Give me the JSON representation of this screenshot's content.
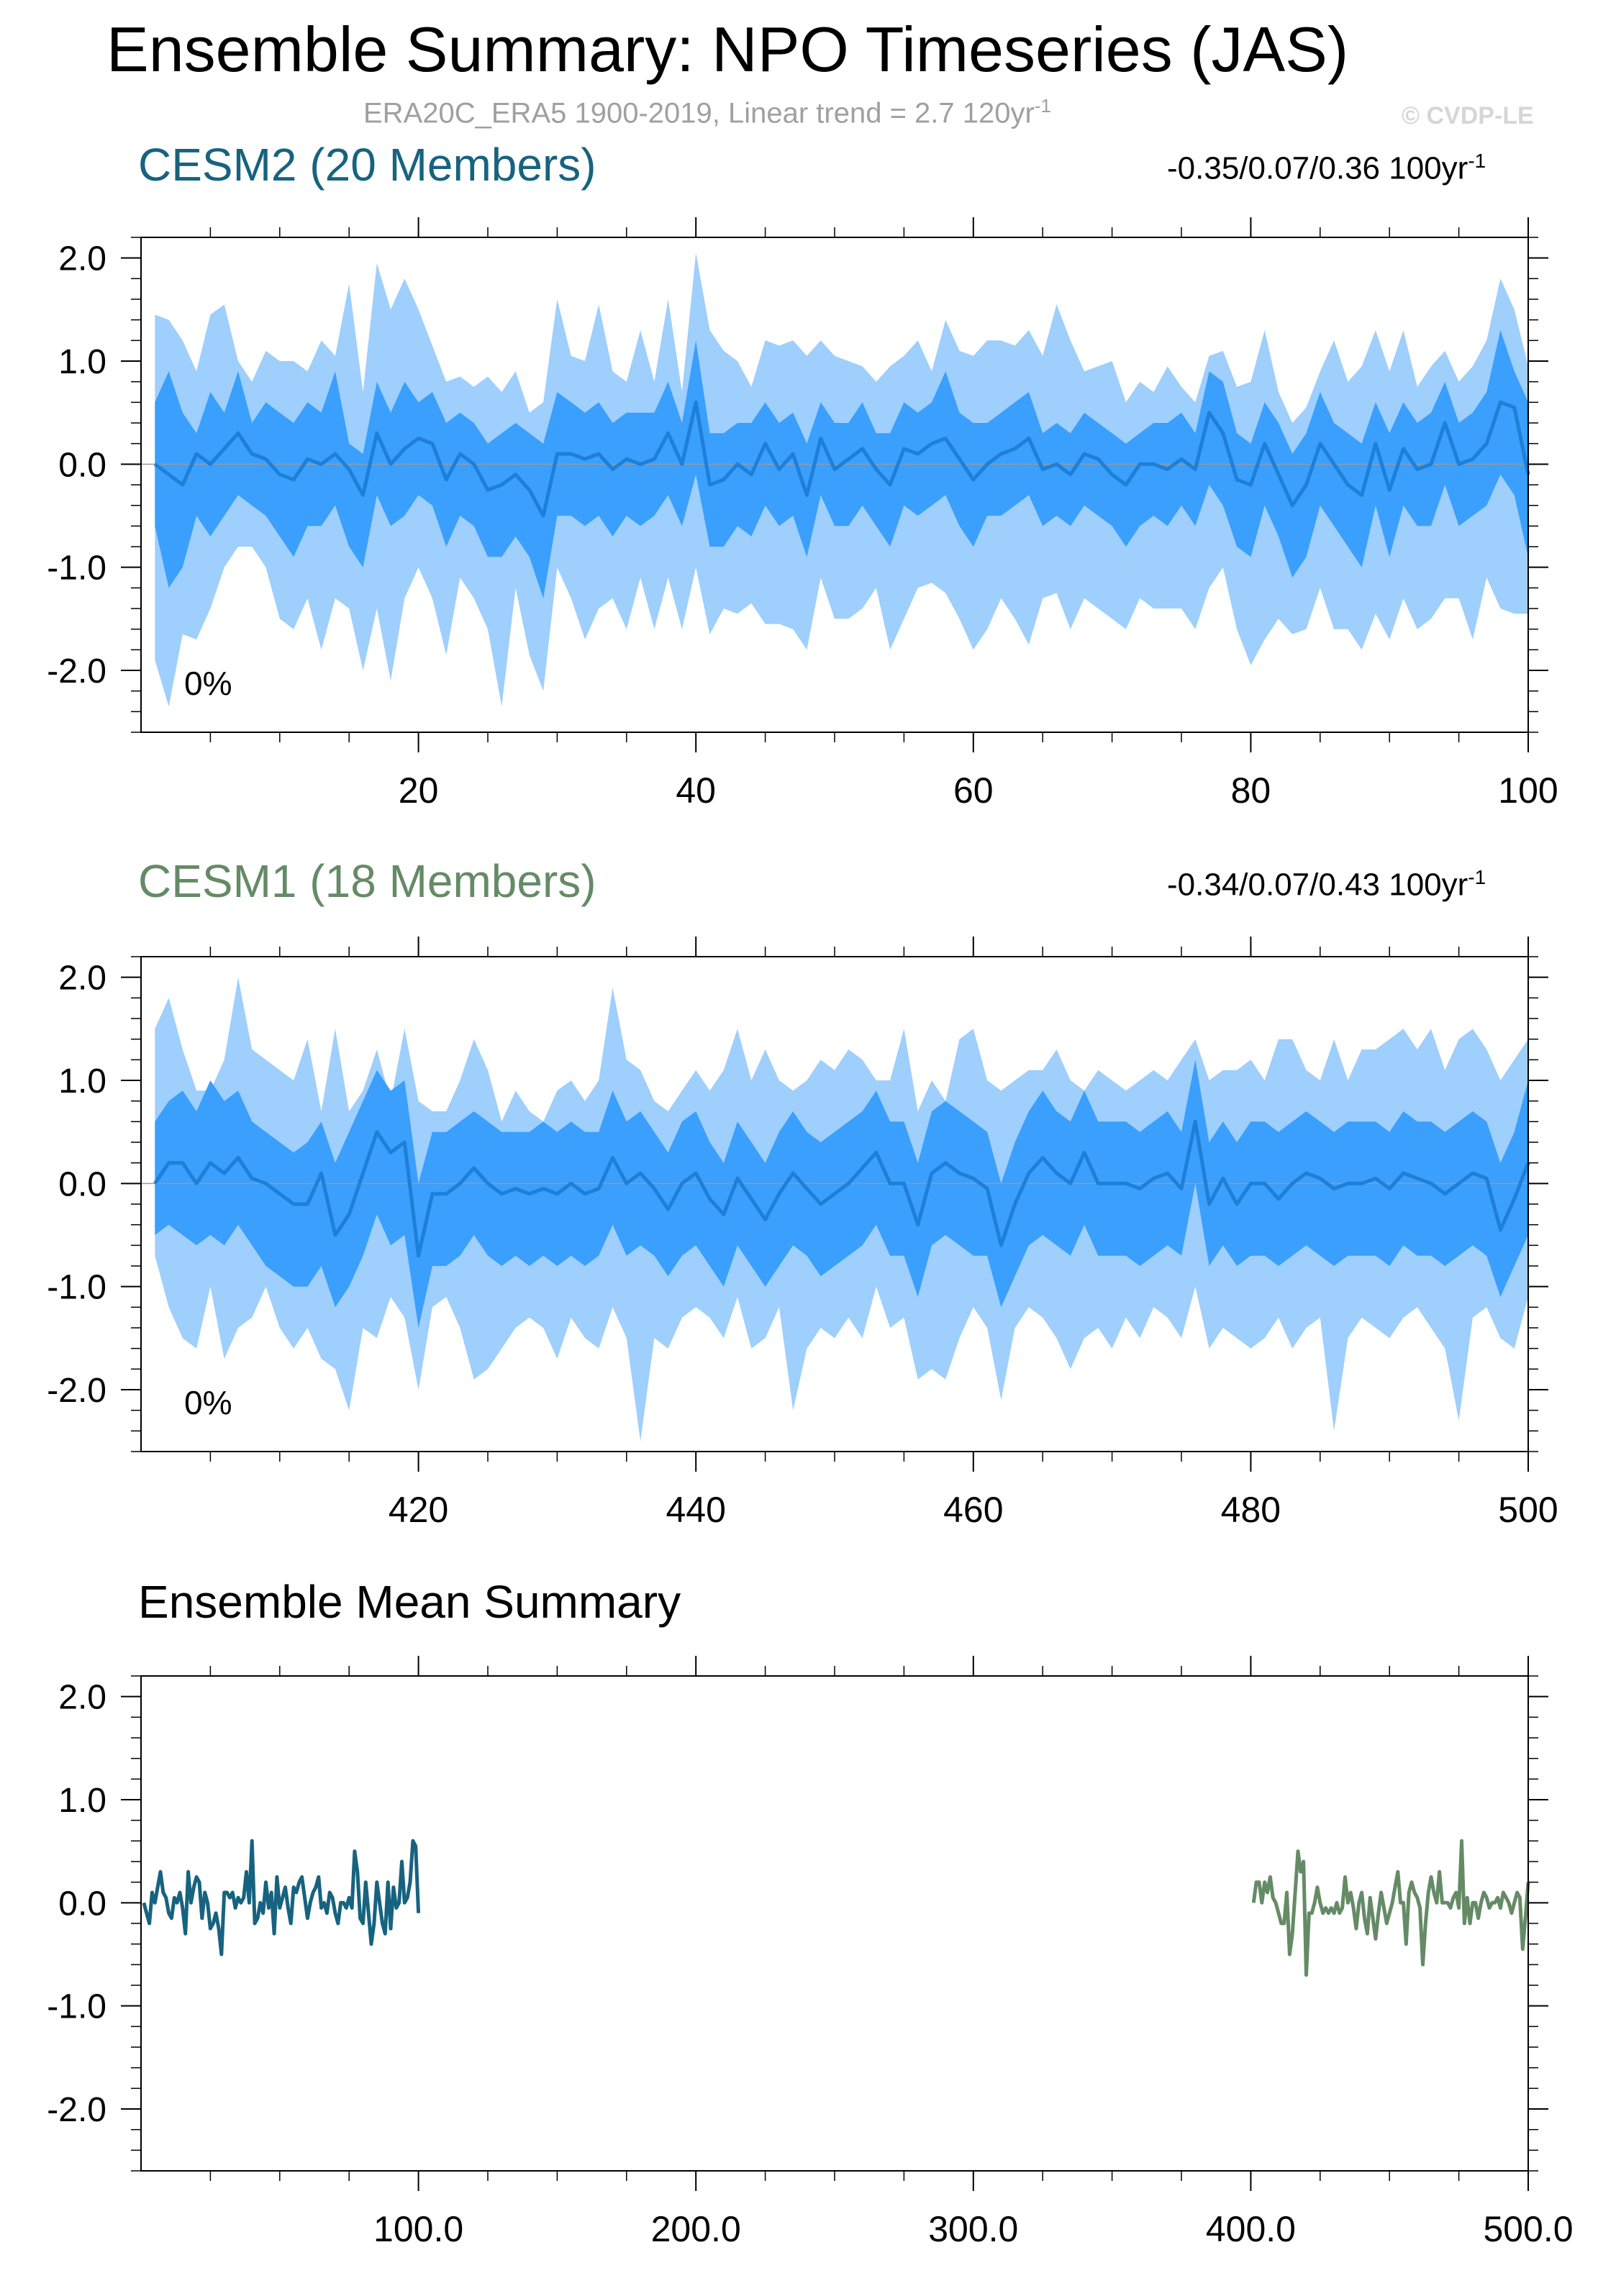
{
  "header": {
    "title": "Ensemble Summary: NPO Timeseries (JAS)",
    "subtitle_main": "ERA20C_ERA5 1900-2019, Linear trend = 2.7 120yr",
    "subtitle_exp": "-1",
    "credit": "© CVDP-LE"
  },
  "colors": {
    "band_outer": "#9ecffd",
    "band_inner": "#3a9ffd",
    "ensemble_mean_line": "#1d7fd8",
    "cesm2": "#17637f",
    "cesm1": "#658b66",
    "zero_line": "#9a9a9a"
  },
  "panels": [
    {
      "title": "CESM2 (20 Members)",
      "trend_text": "-0.35/0.07/0.36 100yr",
      "trend_exp": "-1",
      "percent_label": "0%"
    },
    {
      "title": "CESM1 (18 Members)",
      "trend_text": "-0.34/0.07/0.43 100yr",
      "trend_exp": "-1",
      "percent_label": "0%"
    },
    {
      "title": "Ensemble Mean Summary"
    }
  ],
  "chart_data": [
    {
      "type": "area",
      "title": "CESM2 (20 Members)",
      "xlim": [
        0,
        100
      ],
      "ylim": [
        -2.6,
        2.2
      ],
      "xticks": [
        20,
        40,
        60,
        80,
        100
      ],
      "xtick_labels": [
        "20",
        "40",
        "60",
        "80",
        "100"
      ],
      "yticks": [
        2.0,
        1.0,
        0.0,
        -1.0,
        -2.0
      ],
      "ytick_labels": [
        "2.0",
        "1.0",
        "0.0",
        "-1.0",
        "-2.0"
      ],
      "x": [
        1,
        2,
        3,
        4,
        5,
        6,
        7,
        8,
        9,
        10,
        11,
        12,
        13,
        14,
        15,
        16,
        17,
        18,
        19,
        20,
        21,
        22,
        23,
        24,
        25,
        26,
        27,
        28,
        29,
        30,
        31,
        32,
        33,
        34,
        35,
        36,
        37,
        38,
        39,
        40,
        41,
        42,
        43,
        44,
        45,
        46,
        47,
        48,
        49,
        50,
        51,
        52,
        53,
        54,
        55,
        56,
        57,
        58,
        59,
        60,
        61,
        62,
        63,
        64,
        65,
        66,
        67,
        68,
        69,
        70,
        71,
        72,
        73,
        74,
        75,
        76,
        77,
        78,
        79,
        80,
        81,
        82,
        83,
        84,
        85,
        86,
        87,
        88,
        89,
        90,
        91,
        92,
        93,
        94,
        95,
        96,
        97,
        98,
        99,
        100
      ],
      "mean": [
        0.0,
        -0.1,
        -0.2,
        0.1,
        0.0,
        0.15,
        0.3,
        0.1,
        0.05,
        -0.1,
        -0.15,
        0.05,
        0.0,
        0.1,
        -0.05,
        -0.3,
        0.3,
        0.0,
        0.15,
        0.25,
        0.2,
        -0.15,
        0.1,
        0.0,
        -0.25,
        -0.2,
        -0.1,
        -0.25,
        -0.5,
        0.1,
        0.1,
        0.05,
        0.1,
        -0.05,
        0.05,
        0.0,
        0.05,
        0.3,
        0.0,
        0.6,
        -0.2,
        -0.15,
        0.0,
        -0.1,
        0.2,
        -0.05,
        0.1,
        -0.3,
        0.25,
        -0.05,
        0.05,
        0.15,
        -0.05,
        -0.2,
        0.15,
        0.1,
        0.2,
        0.25,
        0.05,
        -0.15,
        0.0,
        0.1,
        0.15,
        0.25,
        -0.05,
        0.0,
        -0.1,
        0.1,
        0.05,
        -0.1,
        -0.2,
        0.0,
        0.0,
        -0.05,
        0.05,
        -0.05,
        0.5,
        0.3,
        -0.15,
        -0.2,
        0.2,
        -0.1,
        -0.4,
        -0.2,
        0.2,
        0.0,
        -0.2,
        -0.3,
        0.2,
        -0.25,
        0.15,
        -0.05,
        0.0,
        0.4,
        0.0,
        0.05,
        0.2,
        0.6,
        0.55,
        -0.1
      ],
      "inner_upper": [
        0.6,
        0.9,
        0.5,
        0.3,
        0.7,
        0.5,
        0.9,
        0.4,
        0.6,
        0.5,
        0.4,
        0.6,
        0.5,
        0.9,
        0.2,
        0.1,
        0.8,
        0.5,
        0.8,
        0.6,
        0.7,
        0.4,
        0.5,
        0.4,
        0.2,
        0.3,
        0.4,
        0.3,
        0.2,
        0.7,
        0.6,
        0.5,
        0.6,
        0.4,
        0.5,
        0.5,
        0.5,
        0.8,
        0.4,
        1.2,
        0.3,
        0.3,
        0.4,
        0.4,
        0.6,
        0.4,
        0.5,
        0.2,
        0.6,
        0.4,
        0.4,
        0.6,
        0.3,
        0.3,
        0.6,
        0.5,
        0.6,
        0.9,
        0.5,
        0.4,
        0.4,
        0.5,
        0.6,
        0.7,
        0.3,
        0.4,
        0.3,
        0.5,
        0.4,
        0.3,
        0.2,
        0.3,
        0.4,
        0.4,
        0.5,
        0.3,
        0.9,
        0.8,
        0.3,
        0.2,
        0.6,
        0.4,
        0.1,
        0.3,
        0.7,
        0.4,
        0.3,
        0.2,
        0.6,
        0.3,
        0.6,
        0.4,
        0.5,
        0.8,
        0.4,
        0.5,
        0.7,
        1.3,
        0.9,
        0.6
      ],
      "inner_lower": [
        -0.6,
        -1.2,
        -1.0,
        -0.5,
        -0.7,
        -0.5,
        -0.3,
        -0.4,
        -0.5,
        -0.7,
        -0.9,
        -0.6,
        -0.6,
        -0.4,
        -0.8,
        -1.0,
        -0.3,
        -0.6,
        -0.5,
        -0.3,
        -0.4,
        -0.8,
        -0.5,
        -0.6,
        -0.9,
        -0.9,
        -0.7,
        -0.9,
        -1.3,
        -0.5,
        -0.5,
        -0.6,
        -0.5,
        -0.7,
        -0.5,
        -0.6,
        -0.5,
        -0.3,
        -0.6,
        -0.1,
        -0.8,
        -0.8,
        -0.6,
        -0.7,
        -0.4,
        -0.6,
        -0.5,
        -0.9,
        -0.3,
        -0.6,
        -0.6,
        -0.4,
        -0.6,
        -0.8,
        -0.4,
        -0.5,
        -0.4,
        -0.3,
        -0.6,
        -0.8,
        -0.5,
        -0.5,
        -0.4,
        -0.3,
        -0.6,
        -0.5,
        -0.6,
        -0.4,
        -0.5,
        -0.6,
        -0.8,
        -0.6,
        -0.5,
        -0.6,
        -0.4,
        -0.6,
        -0.2,
        -0.4,
        -0.8,
        -0.9,
        -0.4,
        -0.7,
        -1.1,
        -0.9,
        -0.4,
        -0.6,
        -0.8,
        -1.0,
        -0.4,
        -0.9,
        -0.4,
        -0.6,
        -0.6,
        -0.2,
        -0.6,
        -0.5,
        -0.4,
        -0.1,
        -0.3,
        -0.9
      ],
      "outer_upper": [
        1.45,
        1.4,
        1.2,
        0.9,
        1.45,
        1.55,
        1.0,
        0.8,
        1.1,
        1.0,
        1.0,
        0.9,
        1.2,
        1.05,
        1.75,
        0.7,
        1.95,
        1.5,
        1.8,
        1.5,
        1.15,
        0.8,
        0.85,
        0.75,
        0.85,
        0.7,
        0.9,
        0.5,
        0.6,
        1.6,
        1.05,
        1.0,
        1.55,
        0.9,
        0.8,
        1.3,
        0.8,
        1.6,
        0.7,
        2.05,
        1.3,
        1.1,
        1.0,
        0.75,
        1.2,
        1.15,
        1.2,
        1.05,
        1.2,
        1.05,
        1.0,
        0.95,
        0.8,
        0.95,
        1.05,
        1.2,
        0.9,
        1.4,
        1.1,
        1.05,
        1.2,
        1.2,
        1.15,
        1.3,
        1.05,
        1.55,
        1.2,
        0.9,
        0.95,
        1.0,
        0.6,
        0.8,
        0.7,
        0.95,
        0.75,
        0.6,
        1.05,
        1.1,
        0.75,
        0.8,
        1.3,
        0.7,
        0.4,
        0.55,
        0.9,
        1.2,
        0.8,
        0.95,
        1.3,
        0.9,
        1.3,
        0.75,
        0.95,
        1.1,
        0.8,
        0.95,
        1.2,
        1.8,
        1.5,
        0.95
      ],
      "outer_lower": [
        -1.9,
        -2.35,
        -1.65,
        -1.7,
        -1.4,
        -1.0,
        -0.8,
        -0.8,
        -1.0,
        -1.5,
        -1.6,
        -1.3,
        -1.8,
        -1.3,
        -1.4,
        -2.0,
        -1.4,
        -2.1,
        -1.3,
        -1.0,
        -1.3,
        -1.85,
        -1.1,
        -1.3,
        -1.6,
        -2.35,
        -1.2,
        -1.85,
        -2.2,
        -1.0,
        -1.3,
        -1.7,
        -1.4,
        -1.3,
        -1.6,
        -1.1,
        -1.6,
        -1.1,
        -1.6,
        -1.0,
        -1.65,
        -1.4,
        -1.45,
        -1.35,
        -1.55,
        -1.55,
        -1.6,
        -1.8,
        -1.1,
        -1.5,
        -1.5,
        -1.4,
        -1.2,
        -1.8,
        -1.5,
        -1.2,
        -1.15,
        -1.25,
        -1.5,
        -1.8,
        -1.6,
        -1.3,
        -1.5,
        -1.75,
        -1.3,
        -1.25,
        -1.6,
        -1.3,
        -1.4,
        -1.5,
        -1.6,
        -1.3,
        -1.4,
        -1.4,
        -1.4,
        -1.6,
        -1.2,
        -1.0,
        -1.6,
        -1.95,
        -1.7,
        -1.5,
        -1.65,
        -1.6,
        -1.2,
        -1.6,
        -1.6,
        -1.8,
        -1.45,
        -1.7,
        -1.3,
        -1.6,
        -1.5,
        -1.3,
        -1.3,
        -1.7,
        -1.1,
        -1.4,
        -1.45,
        -1.45
      ]
    },
    {
      "type": "area",
      "title": "CESM1 (18 Members)",
      "xlim": [
        400,
        500
      ],
      "ylim": [
        -2.6,
        2.2
      ],
      "xticks": [
        420,
        440,
        460,
        480,
        500
      ],
      "xtick_labels": [
        "420",
        "440",
        "460",
        "480",
        "500"
      ],
      "yticks": [
        2.0,
        1.0,
        0.0,
        -1.0,
        -2.0
      ],
      "ytick_labels": [
        "2.0",
        "1.0",
        "0.0",
        "-1.0",
        "-2.0"
      ],
      "x": [
        401,
        402,
        403,
        404,
        405,
        406,
        407,
        408,
        409,
        410,
        411,
        412,
        413,
        414,
        415,
        416,
        417,
        418,
        419,
        420,
        421,
        422,
        423,
        424,
        425,
        426,
        427,
        428,
        429,
        430,
        431,
        432,
        433,
        434,
        435,
        436,
        437,
        438,
        439,
        440,
        441,
        442,
        443,
        444,
        445,
        446,
        447,
        448,
        449,
        450,
        451,
        452,
        453,
        454,
        455,
        456,
        457,
        458,
        459,
        460,
        461,
        462,
        463,
        464,
        465,
        466,
        467,
        468,
        469,
        470,
        471,
        472,
        473,
        474,
        475,
        476,
        477,
        478,
        479,
        480,
        481,
        482,
        483,
        484,
        485,
        486,
        487,
        488,
        489,
        490,
        491,
        492,
        493,
        494,
        495,
        496,
        497,
        498,
        499,
        500
      ],
      "mean": [
        0.0,
        0.2,
        0.2,
        0.0,
        0.2,
        0.1,
        0.25,
        0.05,
        0.0,
        -0.1,
        -0.2,
        -0.2,
        0.1,
        -0.5,
        -0.3,
        0.1,
        0.5,
        0.3,
        0.4,
        -0.7,
        -0.1,
        -0.1,
        0.0,
        0.15,
        0.0,
        -0.1,
        -0.05,
        -0.1,
        -0.05,
        -0.1,
        0.0,
        -0.1,
        -0.05,
        0.25,
        0.0,
        0.1,
        -0.05,
        -0.25,
        0.0,
        0.1,
        -0.15,
        -0.3,
        0.05,
        -0.15,
        -0.35,
        -0.1,
        0.1,
        -0.05,
        -0.2,
        -0.1,
        0.0,
        0.15,
        0.3,
        0.0,
        0.0,
        -0.4,
        0.1,
        0.2,
        0.1,
        0.05,
        -0.05,
        -0.6,
        -0.2,
        0.1,
        0.25,
        0.1,
        0.0,
        0.3,
        0.0,
        0.0,
        0.0,
        -0.05,
        0.05,
        0.1,
        -0.05,
        0.6,
        -0.2,
        0.05,
        -0.2,
        0.0,
        0.0,
        -0.15,
        0.0,
        0.1,
        0.05,
        -0.05,
        0.0,
        0.0,
        0.05,
        -0.05,
        0.1,
        0.05,
        0.0,
        -0.1,
        0.0,
        0.1,
        0.05,
        -0.45,
        -0.15,
        0.2
      ],
      "inner_upper": [
        0.6,
        0.8,
        0.9,
        0.7,
        1.0,
        0.8,
        0.9,
        0.6,
        0.5,
        0.4,
        0.3,
        0.4,
        0.6,
        0.2,
        0.5,
        0.8,
        1.1,
        0.9,
        1.0,
        0.0,
        0.5,
        0.5,
        0.6,
        0.7,
        0.6,
        0.5,
        0.5,
        0.5,
        0.6,
        0.5,
        0.6,
        0.5,
        0.5,
        0.9,
        0.6,
        0.7,
        0.5,
        0.3,
        0.6,
        0.7,
        0.4,
        0.2,
        0.6,
        0.4,
        0.2,
        0.5,
        0.7,
        0.5,
        0.4,
        0.5,
        0.6,
        0.7,
        0.9,
        0.6,
        0.6,
        0.2,
        0.7,
        0.8,
        0.7,
        0.6,
        0.5,
        0.0,
        0.4,
        0.7,
        0.9,
        0.7,
        0.6,
        0.9,
        0.6,
        0.6,
        0.6,
        0.5,
        0.6,
        0.7,
        0.5,
        1.2,
        0.4,
        0.6,
        0.4,
        0.6,
        0.6,
        0.5,
        0.6,
        0.7,
        0.6,
        0.5,
        0.6,
        0.6,
        0.6,
        0.5,
        0.7,
        0.6,
        0.6,
        0.5,
        0.6,
        0.7,
        0.6,
        0.2,
        0.5,
        1.0
      ],
      "inner_lower": [
        -0.5,
        -0.4,
        -0.5,
        -0.6,
        -0.5,
        -0.6,
        -0.4,
        -0.6,
        -0.8,
        -0.9,
        -1.0,
        -1.0,
        -0.8,
        -1.2,
        -1.0,
        -0.7,
        -0.3,
        -0.6,
        -0.5,
        -1.4,
        -0.8,
        -0.8,
        -0.7,
        -0.5,
        -0.7,
        -0.8,
        -0.7,
        -0.8,
        -0.7,
        -0.8,
        -0.7,
        -0.8,
        -0.7,
        -0.4,
        -0.7,
        -0.6,
        -0.7,
        -0.9,
        -0.7,
        -0.6,
        -0.8,
        -1.0,
        -0.6,
        -0.8,
        -1.0,
        -0.8,
        -0.6,
        -0.7,
        -0.9,
        -0.8,
        -0.7,
        -0.6,
        -0.4,
        -0.7,
        -0.7,
        -1.1,
        -0.6,
        -0.5,
        -0.6,
        -0.7,
        -0.7,
        -1.2,
        -0.9,
        -0.6,
        -0.5,
        -0.6,
        -0.7,
        -0.4,
        -0.7,
        -0.7,
        -0.7,
        -0.8,
        -0.7,
        -0.6,
        -0.7,
        0.0,
        -0.8,
        -0.6,
        -0.8,
        -0.7,
        -0.7,
        -0.8,
        -0.7,
        -0.6,
        -0.7,
        -0.8,
        -0.7,
        -0.7,
        -0.7,
        -0.8,
        -0.6,
        -0.7,
        -0.7,
        -0.8,
        -0.7,
        -0.6,
        -0.7,
        -1.1,
        -0.8,
        -0.5
      ],
      "outer_upper": [
        1.5,
        1.8,
        1.3,
        0.9,
        0.9,
        1.2,
        2.0,
        1.3,
        1.2,
        1.1,
        1.0,
        1.4,
        0.7,
        1.5,
        0.7,
        0.9,
        1.3,
        0.8,
        1.5,
        0.8,
        0.7,
        0.7,
        1.0,
        1.4,
        1.1,
        0.6,
        0.9,
        0.7,
        0.6,
        0.9,
        1.0,
        0.8,
        1.0,
        1.9,
        1.2,
        1.1,
        0.8,
        0.7,
        0.9,
        1.1,
        0.9,
        1.1,
        1.5,
        1.0,
        1.3,
        1.0,
        0.9,
        1.0,
        1.2,
        1.1,
        1.3,
        1.2,
        1.0,
        1.0,
        1.5,
        0.7,
        1.0,
        0.8,
        1.4,
        1.5,
        1.0,
        0.9,
        1.0,
        1.1,
        1.1,
        1.3,
        1.0,
        0.9,
        1.1,
        1.0,
        0.9,
        1.0,
        1.1,
        1.0,
        1.2,
        1.4,
        1.0,
        1.1,
        1.1,
        1.2,
        1.0,
        1.4,
        1.4,
        1.1,
        1.0,
        1.4,
        1.0,
        1.3,
        1.3,
        1.4,
        1.5,
        1.3,
        1.5,
        1.1,
        1.4,
        1.5,
        1.3,
        1.0,
        1.2,
        1.4
      ],
      "outer_lower": [
        -0.7,
        -1.2,
        -1.5,
        -1.6,
        -1.0,
        -1.7,
        -1.4,
        -1.3,
        -1.0,
        -1.4,
        -1.6,
        -1.4,
        -1.7,
        -1.8,
        -2.2,
        -1.4,
        -1.5,
        -1.1,
        -1.3,
        -2.0,
        -1.2,
        -1.1,
        -1.4,
        -1.9,
        -1.8,
        -1.6,
        -1.4,
        -1.3,
        -1.4,
        -1.7,
        -1.3,
        -1.5,
        -1.6,
        -1.2,
        -1.5,
        -2.5,
        -1.5,
        -1.6,
        -1.3,
        -1.2,
        -1.3,
        -1.5,
        -1.1,
        -1.6,
        -1.5,
        -1.2,
        -2.2,
        -1.6,
        -1.4,
        -1.5,
        -1.3,
        -1.5,
        -1.0,
        -1.4,
        -1.3,
        -1.9,
        -1.8,
        -1.9,
        -1.5,
        -1.2,
        -1.4,
        -2.1,
        -1.4,
        -1.2,
        -1.3,
        -1.5,
        -1.8,
        -1.5,
        -1.4,
        -1.6,
        -1.3,
        -1.5,
        -1.2,
        -1.3,
        -1.5,
        -1.0,
        -1.6,
        -1.4,
        -1.5,
        -1.6,
        -1.5,
        -1.3,
        -1.6,
        -1.4,
        -1.3,
        -2.4,
        -1.5,
        -1.3,
        -1.4,
        -1.5,
        -1.3,
        -1.2,
        -1.4,
        -1.6,
        -2.3,
        -1.3,
        -1.2,
        -1.5,
        -1.6,
        -1.1
      ]
    },
    {
      "type": "line",
      "title": "Ensemble Mean Summary",
      "xlim": [
        0,
        500
      ],
      "ylim": [
        -2.6,
        2.2
      ],
      "xticks": [
        100,
        200,
        300,
        400,
        500
      ],
      "xtick_labels": [
        "100.0",
        "200.0",
        "300.0",
        "400.0",
        "500.0"
      ],
      "yticks": [
        2.0,
        1.0,
        0.0,
        -1.0,
        -2.0
      ],
      "ytick_labels": [
        "2.0",
        "1.0",
        "0.0",
        "-1.0",
        "-2.0"
      ],
      "series": [
        {
          "color_key": "cesm2",
          "source_panel": 0
        },
        {
          "color_key": "cesm1",
          "source_panel": 1
        }
      ]
    }
  ]
}
